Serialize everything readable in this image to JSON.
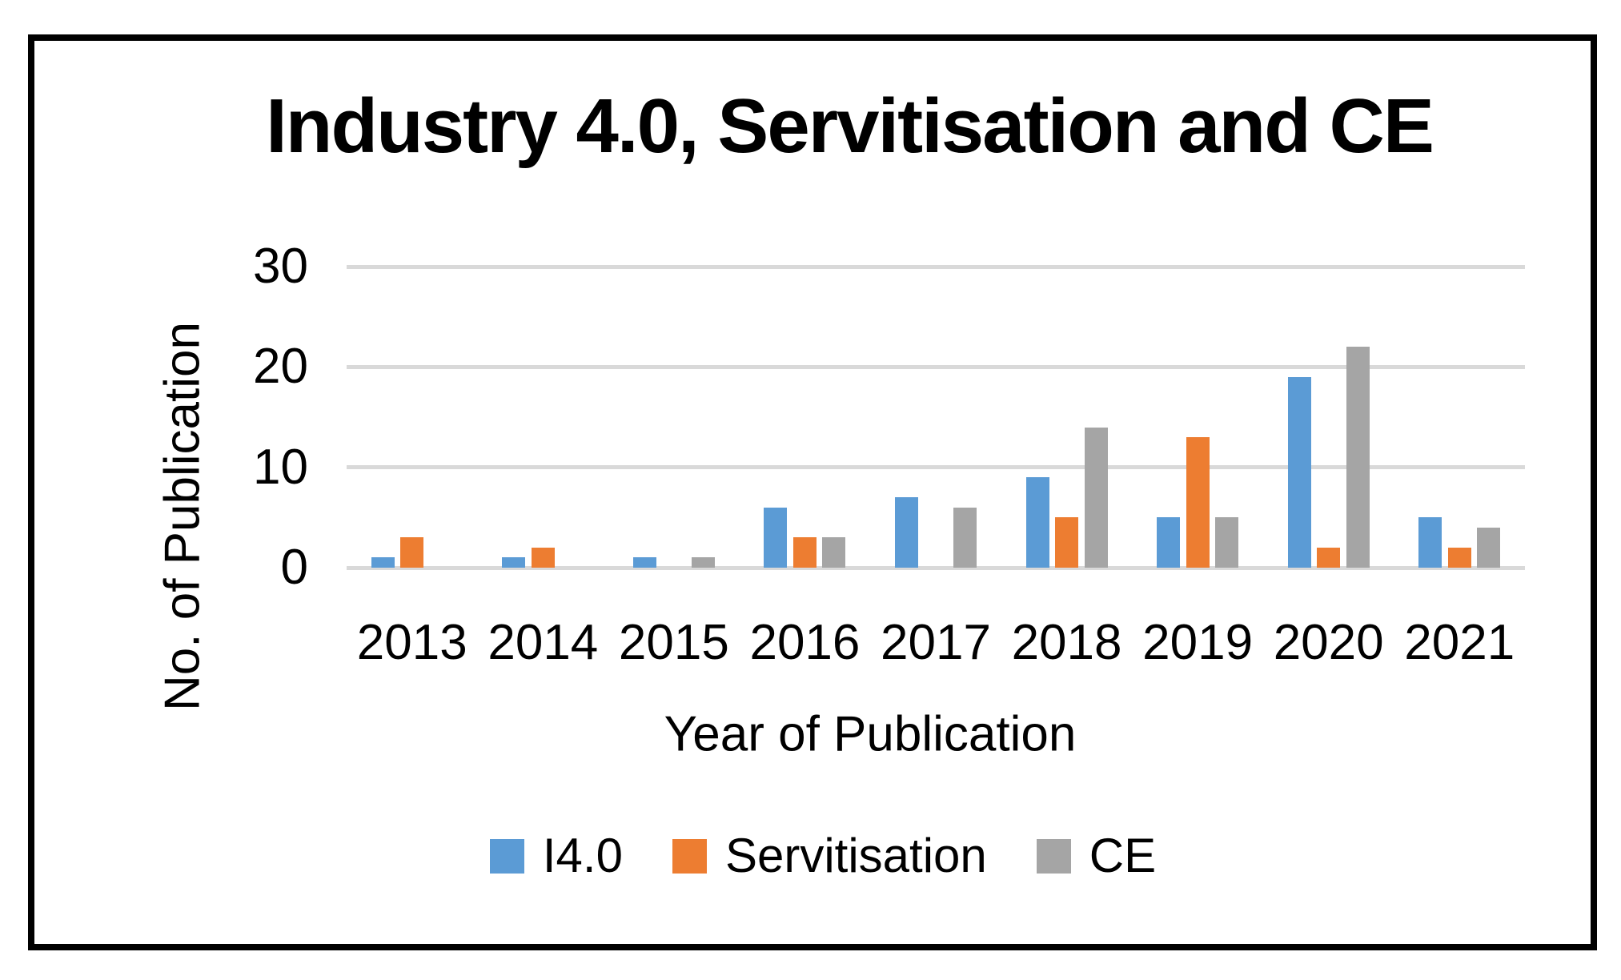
{
  "chart_data": {
    "type": "bar",
    "title": "Industry 4.0, Servitisation and CE",
    "categories": [
      "2013",
      "2014",
      "2015",
      "2016",
      "2017",
      "2018",
      "2019",
      "2020",
      "2021"
    ],
    "series": [
      {
        "name": "I4.0",
        "color": "#5B9BD5",
        "values": [
          1,
          1,
          1,
          6,
          7,
          9,
          5,
          19,
          5
        ]
      },
      {
        "name": "Servitisation",
        "color": "#ED7D31",
        "values": [
          3,
          2,
          0,
          3,
          0,
          5,
          13,
          2,
          2
        ]
      },
      {
        "name": "CE",
        "color": "#A5A5A5",
        "values": [
          0,
          0,
          1,
          3,
          6,
          14,
          5,
          22,
          4
        ]
      }
    ],
    "xlabel": "Year of Publication",
    "ylabel": "No. of Publication",
    "yticks": [
      0,
      10,
      20,
      30
    ],
    "ylim": [
      0,
      30
    ],
    "grid": true,
    "gridline_color": "#D9D9D9",
    "legend_position": "bottom",
    "frame_border_color": "#000000"
  }
}
